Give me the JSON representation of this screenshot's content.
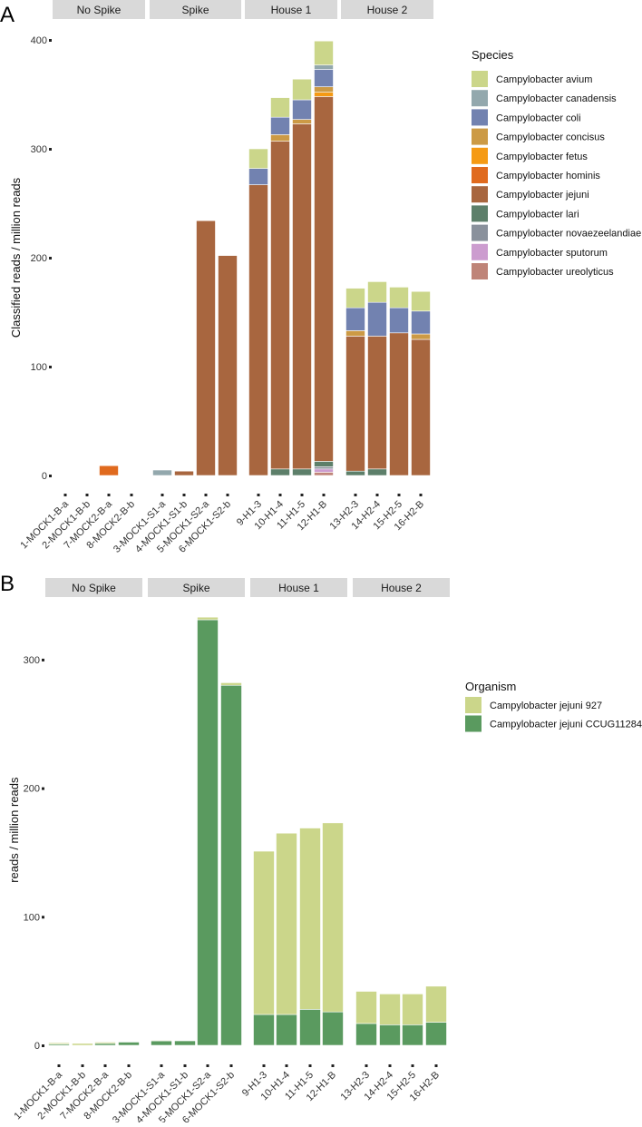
{
  "chart_data": [
    {
      "panel_label": "A",
      "type": "bar",
      "stacked": true,
      "ylabel": "Classified reads / million reads",
      "ylim": [
        0,
        400
      ],
      "yticks": [
        0,
        100,
        200,
        300,
        400
      ],
      "facets": [
        {
          "name": "No Spike",
          "categories": [
            "1-MOCK1-B-a",
            "2-MOCK1-B-b",
            "7-MOCK2-B-a",
            "8-MOCK2-B-b"
          ]
        },
        {
          "name": "Spike",
          "categories": [
            "3-MOCK1-S1-a",
            "4-MOCK1-S1-b",
            "5-MOCK1-S2-a",
            "6-MOCK1-S2-b"
          ]
        },
        {
          "name": "House 1",
          "categories": [
            "9-H1-3",
            "10-H1-4",
            "11-H1-5",
            "12-H1-B"
          ]
        },
        {
          "name": "House 2",
          "categories": [
            "13-H2-3",
            "14-H2-4",
            "15-H2-5",
            "16-H2-B"
          ]
        }
      ],
      "legend_title": "Species",
      "legend_position": "right",
      "stack_order": [
        "Campylobacter ureolyticus",
        "Campylobacter sputorum",
        "Campylobacter novaezeelandiae",
        "Campylobacter lari",
        "Campylobacter hominis",
        "Campylobacter jejuni",
        "Campylobacter fetus",
        "Campylobacter concisus",
        "Campylobacter coli",
        "Campylobacter canadensis",
        "Campylobacter avium"
      ],
      "series": [
        {
          "name": "Campylobacter avium",
          "color": "#cbd68a",
          "values": [
            0,
            0,
            0,
            0,
            0,
            0,
            0,
            0,
            18,
            18,
            19,
            22,
            18,
            19,
            19,
            18
          ]
        },
        {
          "name": "Campylobacter canadensis",
          "color": "#93a8ad",
          "values": [
            0,
            0,
            0,
            0,
            5,
            0,
            0,
            0,
            0,
            0,
            0,
            4,
            0,
            0,
            0,
            0
          ]
        },
        {
          "name": "Campylobacter coli",
          "color": "#7282b0",
          "values": [
            0,
            0,
            0,
            0,
            0,
            0,
            0,
            0,
            15,
            16,
            18,
            16,
            21,
            31,
            23,
            21
          ]
        },
        {
          "name": "Campylobacter concisus",
          "color": "#cc9a45",
          "values": [
            0,
            0,
            0,
            0,
            0,
            0,
            0,
            0,
            0,
            6,
            4,
            5,
            5,
            0,
            0,
            5
          ]
        },
        {
          "name": "Campylobacter fetus",
          "color": "#f59a14",
          "values": [
            0,
            0,
            0,
            0,
            0,
            0,
            0,
            0,
            0,
            0,
            0,
            4,
            0,
            0,
            0,
            0
          ]
        },
        {
          "name": "Campylobacter hominis",
          "color": "#e06a1e",
          "values": [
            0,
            0,
            9,
            0,
            0,
            0,
            0,
            0,
            0,
            0,
            0,
            0,
            0,
            0,
            0,
            0
          ]
        },
        {
          "name": "Campylobacter jejuni",
          "color": "#a8663f",
          "values": [
            0,
            0,
            0,
            0,
            0,
            4,
            234,
            202,
            267,
            301,
            317,
            335,
            124,
            122,
            131,
            125
          ]
        },
        {
          "name": "Campylobacter lari",
          "color": "#5d7f6a",
          "values": [
            0,
            0,
            0,
            0,
            0,
            0,
            0,
            0,
            0,
            6,
            6,
            5,
            4,
            6,
            0,
            0
          ]
        },
        {
          "name": "Campylobacter novaezeelandiae",
          "color": "#8a919c",
          "values": [
            0,
            0,
            0,
            0,
            0,
            0,
            0,
            0,
            0,
            0,
            0,
            2,
            0,
            0,
            0,
            0
          ]
        },
        {
          "name": "Campylobacter sputorum",
          "color": "#cc9ccf",
          "values": [
            0,
            0,
            0,
            0,
            0,
            0,
            0,
            0,
            0,
            0,
            0,
            3,
            0,
            0,
            0,
            0
          ]
        },
        {
          "name": "Campylobacter ureolyticus",
          "color": "#bf8478",
          "values": [
            0,
            0,
            0,
            0,
            0,
            0,
            0,
            0,
            0,
            0,
            0,
            3,
            0,
            0,
            0,
            0
          ]
        }
      ]
    },
    {
      "panel_label": "B",
      "type": "bar",
      "stacked": true,
      "ylabel": "reads / million reads",
      "ylim": [
        0,
        335
      ],
      "yticks": [
        0,
        100,
        200,
        300
      ],
      "facets": [
        {
          "name": "No Spike",
          "categories": [
            "1-MOCK1-B-a",
            "2-MOCK1-B-b",
            "7-MOCK2-B-a",
            "8-MOCK2-B-b"
          ]
        },
        {
          "name": "Spike",
          "categories": [
            "3-MOCK1-S1-a",
            "4-MOCK1-S1-b",
            "5-MOCK1-S2-a",
            "6-MOCK1-S2-b"
          ]
        },
        {
          "name": "House 1",
          "categories": [
            "9-H1-3",
            "10-H1-4",
            "11-H1-5",
            "12-H1-B"
          ]
        },
        {
          "name": "House 2",
          "categories": [
            "13-H2-3",
            "14-H2-4",
            "15-H2-5",
            "16-H2-B"
          ]
        }
      ],
      "legend_title": "Organism",
      "legend_position": "right",
      "stack_order": [
        "Campylobacter jejuni CCUG11284T",
        "Campylobacter jejuni 927"
      ],
      "series": [
        {
          "name": "Campylobacter jejuni 927",
          "color": "#cbd68a",
          "values": [
            1,
            1.5,
            1,
            0,
            0.5,
            0,
            2,
            2,
            127,
            141,
            141,
            147,
            25,
            24,
            24,
            28
          ]
        },
        {
          "name": "Campylobacter jejuni CCUG11284T",
          "color": "#5a9a5f",
          "values": [
            1,
            0,
            1.5,
            2.5,
            3.5,
            3.5,
            331,
            280,
            24,
            24,
            28,
            26,
            17,
            16,
            16,
            18
          ]
        }
      ]
    }
  ]
}
